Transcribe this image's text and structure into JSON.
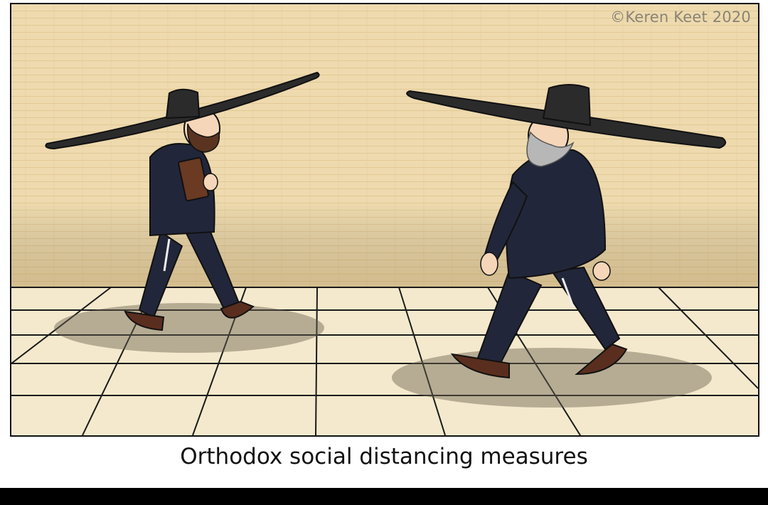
{
  "comic": {
    "copyright": "©Keren Keet 2020",
    "caption": "Orthodox social distancing measures"
  },
  "colors": {
    "wall": "#efd9ab",
    "floor": "#f4e9cd",
    "suit": "#22263a",
    "hat": "#2b2b2b",
    "shoe": "#5a2e1e"
  }
}
